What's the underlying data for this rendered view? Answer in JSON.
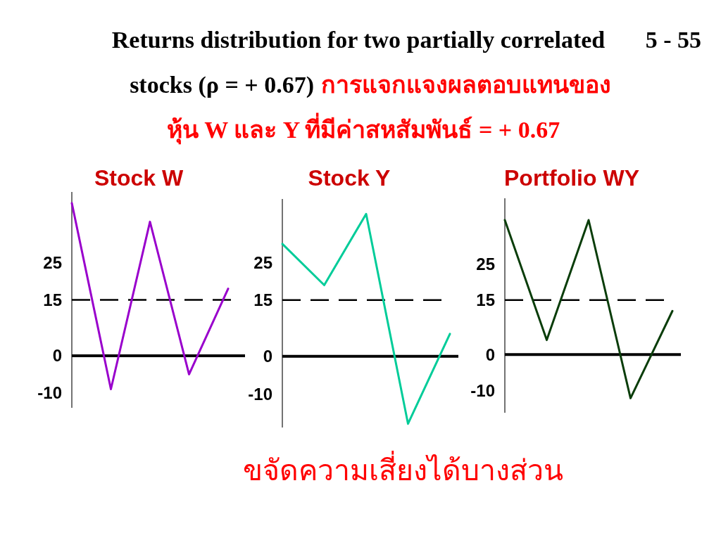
{
  "chart_data": [
    {
      "type": "line",
      "title": "Stock W",
      "categories": [
        null,
        null,
        null,
        null,
        null
      ],
      "values": [
        41,
        -9,
        36,
        -5,
        18
      ],
      "color": "#9900cc",
      "ylim": [
        -14,
        44
      ],
      "yticks": [
        -10,
        0,
        15,
        25
      ],
      "tick_labels": "y",
      "ref_lines": [
        {
          "axis": "y",
          "value": 15,
          "line_style": "dashed",
          "color": "#000000"
        },
        {
          "axis": "y",
          "value": 0,
          "line_style": "solid",
          "color": "#000000"
        }
      ],
      "annotations": [
        "Returns distribution for two partially correlated",
        "stocks (ρ = + 0.67)",
        "การแจกแจงผลตอบแทนของ",
        "หุ้น W และ Y ที่มีค่าสหสัมพันธ์ = + 0.67",
        "5 - 55",
        "ขจัดความเสี่ยงได้บางส่วน"
      ]
    },
    {
      "type": "line",
      "title": "Stock Y",
      "categories": [
        null,
        null,
        null,
        null,
        null
      ],
      "values": [
        30,
        19,
        38,
        -18,
        6
      ],
      "color": "#00cc99",
      "ylim": [
        -19,
        42
      ],
      "yticks": [
        -10,
        0,
        15,
        25
      ],
      "tick_labels": "y",
      "ref_lines": [
        {
          "axis": "y",
          "value": 15,
          "line_style": "dashed",
          "color": "#000000"
        },
        {
          "axis": "y",
          "value": 0,
          "line_style": "solid",
          "color": "#000000"
        }
      ]
    },
    {
      "type": "line",
      "title": "Portfolio WY",
      "categories": [
        null,
        null,
        null,
        null,
        null
      ],
      "values": [
        37,
        4,
        37,
        -12,
        12
      ],
      "color": "#0a3d0a",
      "ylim": [
        -16,
        43
      ],
      "yticks": [
        -10,
        0,
        15,
        25
      ],
      "tick_labels": "y",
      "ref_lines": [
        {
          "axis": "y",
          "value": 15,
          "line_style": "dashed",
          "color": "#000000"
        },
        {
          "axis": "y",
          "value": 0,
          "line_style": "solid",
          "color": "#000000"
        }
      ]
    }
  ]
}
